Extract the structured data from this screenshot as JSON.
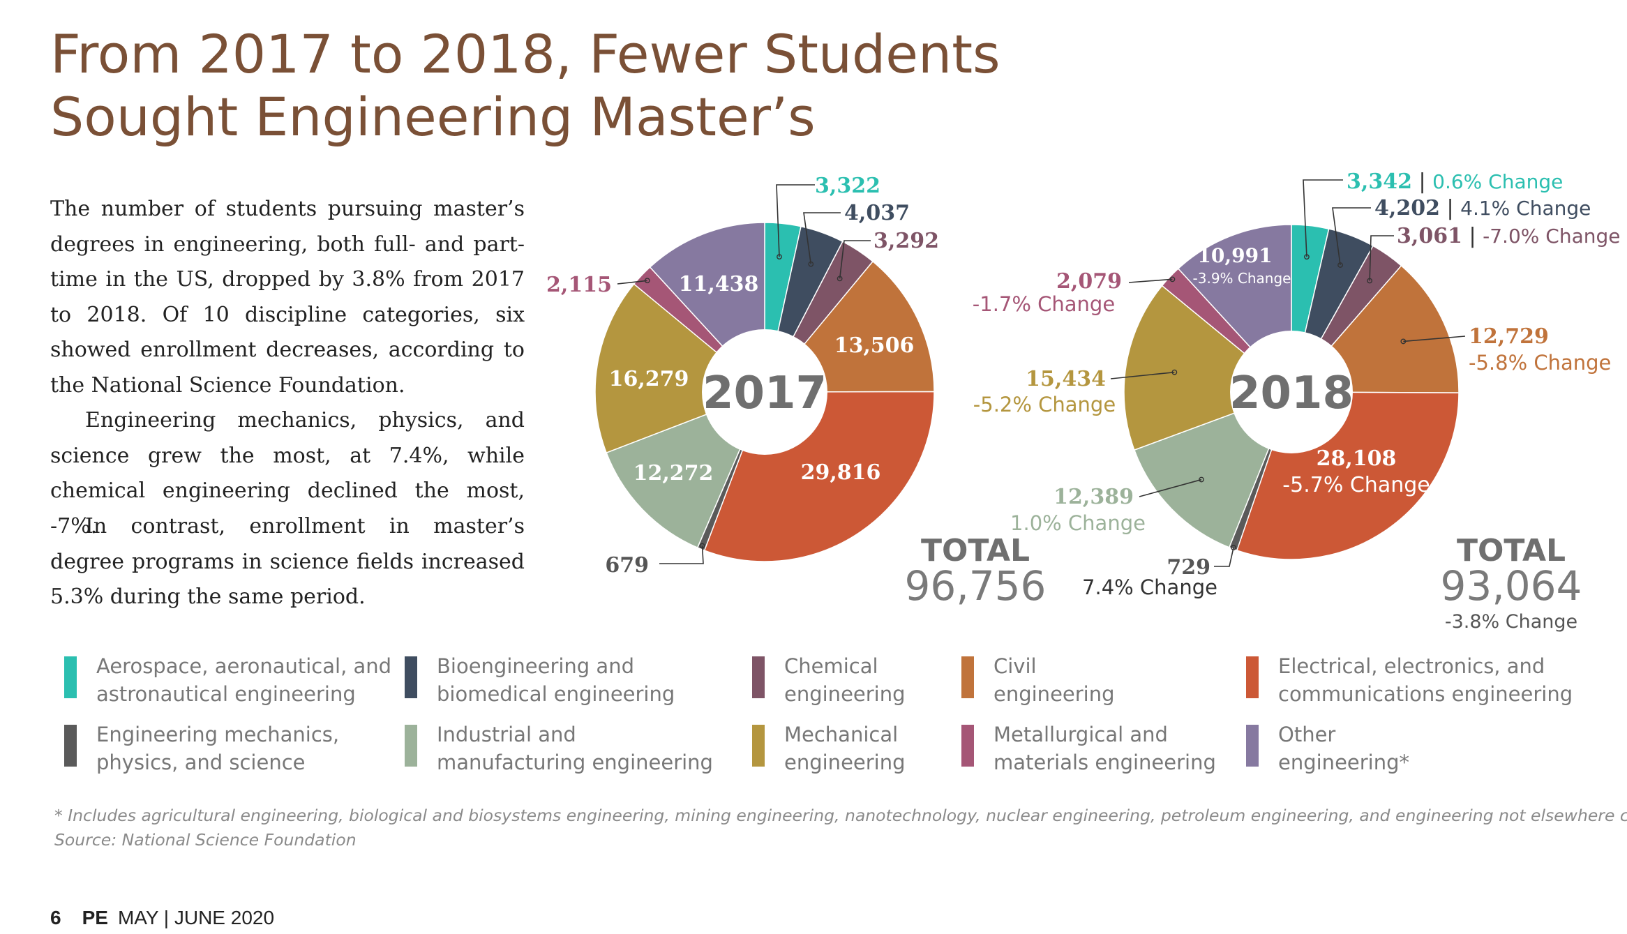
{
  "headline": {
    "line1": "From 2017 to 2018, Fewer Students",
    "line2": "Sought Engineering Master’s"
  },
  "body": {
    "p1": "The number of students pursuing master’s degrees in engineering, both full- and part-time in the US, dropped by 3.8% from 2017 to 2018. Of 10 discipline categories, six showed enrollment decreases, according to the National Science Foundation.",
    "p2": "Engineering mechanics, physics, and science grew the most, at 7.4%, while chemical engineering declined the most, -7%.",
    "p3": "In contrast, enrollment in master’s degree programs in science fields increased 5.3% during the same period."
  },
  "chart_data": [
    {
      "type": "pie",
      "center_label": "2017",
      "total_label": "TOTAL",
      "total_value": "96,756",
      "categories": [
        "Aerospace, aeronautical, and astronautical engineering",
        "Bioengineering and biomedical engineering",
        "Chemical engineering",
        "Civil engineering",
        "Electrical, electronics, and communications engineering",
        "Engineering mechanics, physics, and science",
        "Industrial and manufacturing engineering",
        "Mechanical engineering",
        "Metallurgical and materials engineering",
        "Other engineering*"
      ],
      "values": [
        3322,
        4037,
        3292,
        13506,
        29816,
        679,
        12272,
        16279,
        2115,
        11438
      ],
      "value_labels": [
        "3,322",
        "4,037",
        "3,292",
        "13,506",
        "29,816",
        "679",
        "12,272",
        "16,279",
        "2,115",
        "11,438"
      ]
    },
    {
      "type": "pie",
      "center_label": "2018",
      "total_label": "TOTAL",
      "total_value": "93,064",
      "total_change": "-3.8% Change",
      "categories": [
        "Aerospace, aeronautical, and astronautical engineering",
        "Bioengineering and biomedical engineering",
        "Chemical engineering",
        "Civil engineering",
        "Electrical, electronics, and communications engineering",
        "Engineering mechanics, physics, and science",
        "Industrial and manufacturing engineering",
        "Mechanical engineering",
        "Metallurgical and materials engineering",
        "Other engineering*"
      ],
      "values": [
        3342,
        4202,
        3061,
        12729,
        28108,
        729,
        12389,
        15434,
        2079,
        10991
      ],
      "value_labels": [
        "3,342",
        "4,202",
        "3,061",
        "12,729",
        "28,108",
        "729",
        "12,389",
        "15,434",
        "2,079",
        "10,991"
      ],
      "changes": [
        "0.6% Change",
        "4.1% Change",
        "-7.0% Change",
        "-5.8% Change",
        "-5.7% Change",
        "7.4% Change",
        "1.0% Change",
        "-5.2% Change",
        "-1.7% Change",
        "-3.9% Change"
      ]
    }
  ],
  "legend": [
    {
      "line1": "Aerospace, aeronautical, and",
      "line2": "astronautical engineering",
      "color": "#2bbfb0"
    },
    {
      "line1": "Bioengineering and",
      "line2": "biomedical engineering",
      "color": "#3f4d60"
    },
    {
      "line1": "Chemical",
      "line2": "engineering",
      "color": "#7e5466"
    },
    {
      "line1": "Civil",
      "line2": "engineering",
      "color": "#c0733b"
    },
    {
      "line1": "Electrical, electronics, and",
      "line2": "communications engineering",
      "color": "#cc5836"
    },
    {
      "line1": "Engineering mechanics,",
      "line2": "physics, and science",
      "color": "#5a5a5a"
    },
    {
      "line1": "Industrial and",
      "line2": "manufacturing engineering",
      "color": "#9cb29a"
    },
    {
      "line1": "Mechanical",
      "line2": "engineering",
      "color": "#b4963f"
    },
    {
      "line1": "Metallurgical and",
      "line2": "materials engineering",
      "color": "#a55676"
    },
    {
      "line1": "Other",
      "line2": "engineering*",
      "color": "#8679a0"
    }
  ],
  "footnote": {
    "line1": "* Includes agricultural engineering, biological and biosystems engineering, mining engineering, nanotechnology, nuclear engineering, petroleum engineering, and engineering not elsewhere classified.",
    "line2": "Source: National Science Foundation"
  },
  "folio": {
    "page": "6",
    "publication": "PE",
    "issue": "MAY | JUNE 2020"
  }
}
